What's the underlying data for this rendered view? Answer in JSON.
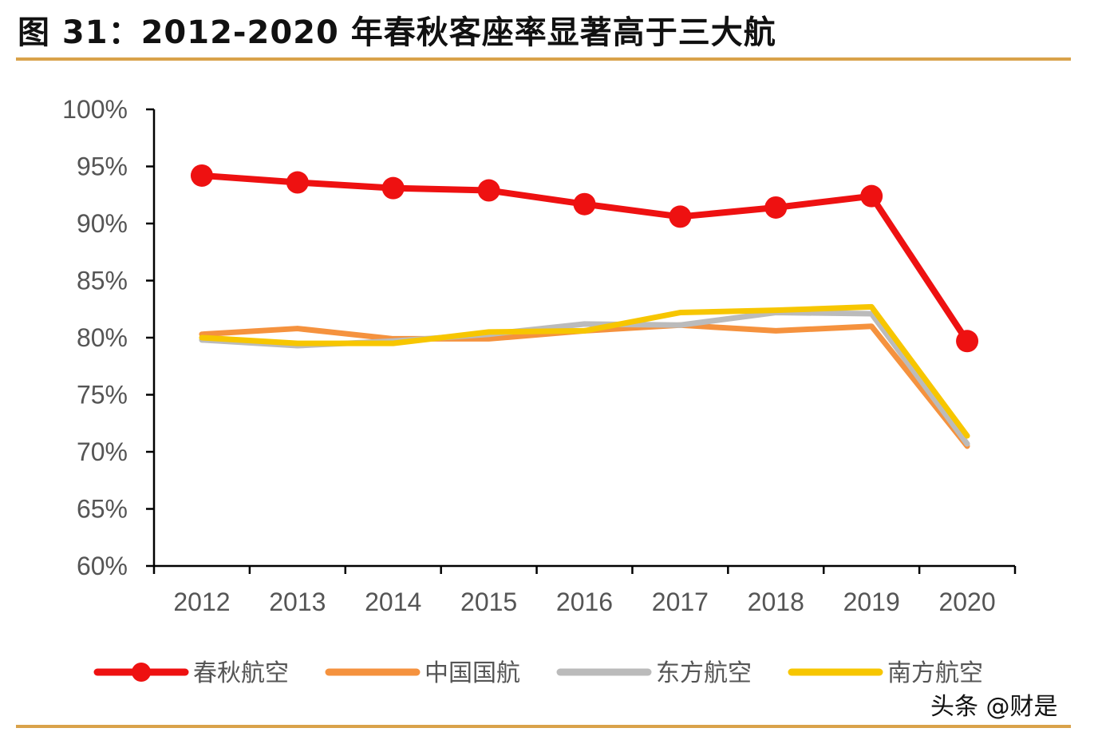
{
  "title": "图 31：2012-2020 年春秋客座率显著高于三大航",
  "watermark": "头条 @财是",
  "chart_data": {
    "type": "line",
    "title": "",
    "xlabel": "",
    "ylabel": "",
    "categories": [
      "2012",
      "2013",
      "2014",
      "2015",
      "2016",
      "2017",
      "2018",
      "2019",
      "2020"
    ],
    "ylim": [
      60,
      100
    ],
    "yticks": [
      "60%",
      "65%",
      "70%",
      "75%",
      "80%",
      "85%",
      "90%",
      "95%",
      "100%"
    ],
    "grid": false,
    "legend_position": "bottom",
    "series": [
      {
        "name": "春秋航空",
        "color": "#ee1111",
        "markers": true,
        "values": [
          94.2,
          93.6,
          93.1,
          92.9,
          91.7,
          90.6,
          91.4,
          92.4,
          79.7
        ]
      },
      {
        "name": "中国国航",
        "color": "#f5923e",
        "markers": false,
        "values": [
          80.3,
          80.8,
          79.9,
          79.9,
          80.6,
          81.1,
          80.6,
          81.0,
          70.5
        ]
      },
      {
        "name": "东方航空",
        "color": "#bbbbbb",
        "markers": false,
        "values": [
          79.8,
          79.3,
          79.7,
          80.3,
          81.2,
          81.1,
          82.2,
          82.1,
          70.7
        ]
      },
      {
        "name": "南方航空",
        "color": "#f7c600",
        "markers": false,
        "values": [
          80.0,
          79.5,
          79.5,
          80.5,
          80.6,
          82.2,
          82.4,
          82.7,
          71.4
        ]
      }
    ]
  }
}
